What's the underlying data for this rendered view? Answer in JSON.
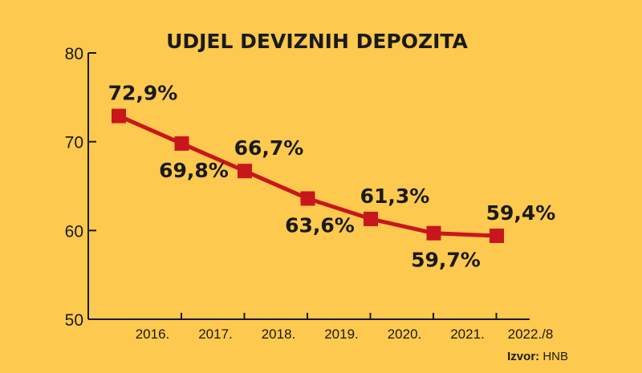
{
  "chart_data": {
    "type": "line",
    "title": "UDJEL DEVIZNIH DEPOZITA",
    "categories": [
      "2016.",
      "2017.",
      "2018.",
      "2019.",
      "2020.",
      "2021.",
      "2022./8"
    ],
    "values": [
      72.9,
      69.8,
      66.7,
      63.6,
      61.3,
      59.7,
      59.4
    ],
    "data_labels": [
      "72,9%",
      "69,8%",
      "66,7%",
      "63,6%",
      "61,3%",
      "59,7%",
      "59,4%"
    ],
    "label_positions": [
      "above",
      "below",
      "above",
      "below",
      "above",
      "below",
      "above"
    ],
    "ylim": [
      50,
      80
    ],
    "yticks": [
      50,
      60,
      70,
      80
    ],
    "ytick_labels": [
      "50",
      "60",
      "70",
      "80"
    ],
    "xlabel": "",
    "ylabel": "",
    "line_color": "#c8161d",
    "marker_color": "#c8161d",
    "background_color": "#fdc94e",
    "source_label": "Izvor:",
    "source_value": "HNB"
  }
}
